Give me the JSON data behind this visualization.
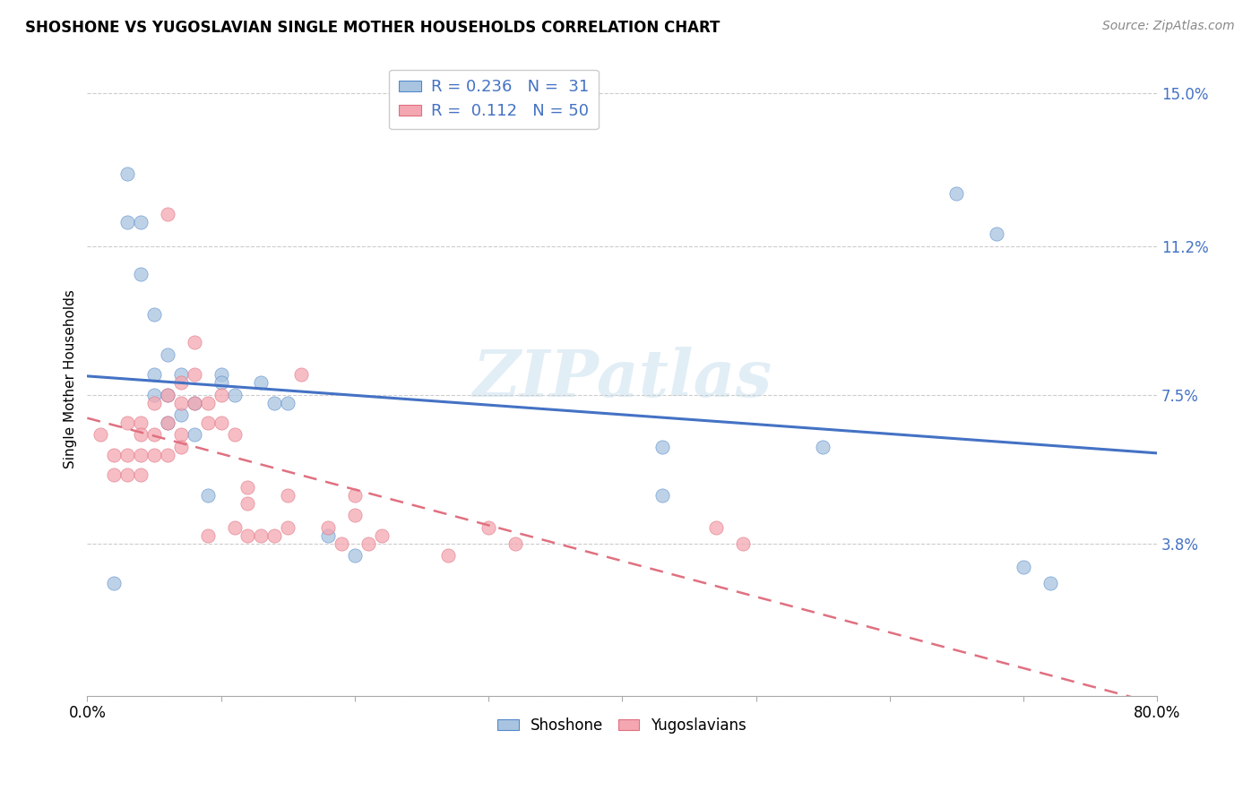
{
  "title": "SHOSHONE VS YUGOSLAVIAN SINGLE MOTHER HOUSEHOLDS CORRELATION CHART",
  "source": "Source: ZipAtlas.com",
  "ylabel": "Single Mother Households",
  "yticks": [
    0.0,
    0.038,
    0.075,
    0.112,
    0.15
  ],
  "ytick_labels": [
    "",
    "3.8%",
    "7.5%",
    "11.2%",
    "15.0%"
  ],
  "xticks": [
    0.0,
    0.1,
    0.2,
    0.3,
    0.4,
    0.5,
    0.6,
    0.7,
    0.8
  ],
  "xlim": [
    0.0,
    0.8
  ],
  "ylim": [
    0.0,
    0.158
  ],
  "legend_R_shoshone": "0.236",
  "legend_N_shoshone": "31",
  "legend_R_yugoslav": "0.112",
  "legend_N_yugoslav": "50",
  "shoshone_color": "#a8c4e0",
  "yugoslavian_color": "#f4a7b0",
  "shoshone_edge_color": "#5588cc",
  "yugoslavian_edge_color": "#e07080",
  "shoshone_line_color": "#4472c4",
  "yugoslavian_line_color": "#e07080",
  "watermark": "ZIPatlas",
  "shoshone_x": [
    0.02,
    0.03,
    0.03,
    0.04,
    0.04,
    0.05,
    0.05,
    0.05,
    0.06,
    0.06,
    0.06,
    0.07,
    0.07,
    0.08,
    0.08,
    0.09,
    0.1,
    0.1,
    0.11,
    0.13,
    0.14,
    0.15,
    0.18,
    0.2,
    0.65,
    0.68,
    0.7,
    0.72,
    0.43,
    0.43,
    0.55
  ],
  "shoshone_y": [
    0.028,
    0.13,
    0.118,
    0.118,
    0.105,
    0.095,
    0.08,
    0.075,
    0.085,
    0.075,
    0.068,
    0.08,
    0.07,
    0.073,
    0.065,
    0.05,
    0.08,
    0.078,
    0.075,
    0.078,
    0.073,
    0.073,
    0.04,
    0.035,
    0.125,
    0.115,
    0.032,
    0.028,
    0.062,
    0.05,
    0.062
  ],
  "yugoslavian_x": [
    0.01,
    0.02,
    0.02,
    0.03,
    0.03,
    0.03,
    0.04,
    0.04,
    0.04,
    0.04,
    0.05,
    0.05,
    0.05,
    0.06,
    0.06,
    0.06,
    0.06,
    0.07,
    0.07,
    0.07,
    0.07,
    0.08,
    0.08,
    0.08,
    0.09,
    0.09,
    0.09,
    0.1,
    0.1,
    0.11,
    0.11,
    0.12,
    0.12,
    0.12,
    0.13,
    0.14,
    0.15,
    0.15,
    0.16,
    0.18,
    0.19,
    0.2,
    0.2,
    0.21,
    0.22,
    0.27,
    0.3,
    0.32,
    0.47,
    0.49
  ],
  "yugoslavian_y": [
    0.065,
    0.06,
    0.055,
    0.068,
    0.06,
    0.055,
    0.068,
    0.065,
    0.06,
    0.055,
    0.073,
    0.065,
    0.06,
    0.12,
    0.075,
    0.068,
    0.06,
    0.078,
    0.073,
    0.065,
    0.062,
    0.088,
    0.08,
    0.073,
    0.073,
    0.068,
    0.04,
    0.075,
    0.068,
    0.065,
    0.042,
    0.052,
    0.048,
    0.04,
    0.04,
    0.04,
    0.05,
    0.042,
    0.08,
    0.042,
    0.038,
    0.05,
    0.045,
    0.038,
    0.04,
    0.035,
    0.042,
    0.038,
    0.042,
    0.038
  ]
}
